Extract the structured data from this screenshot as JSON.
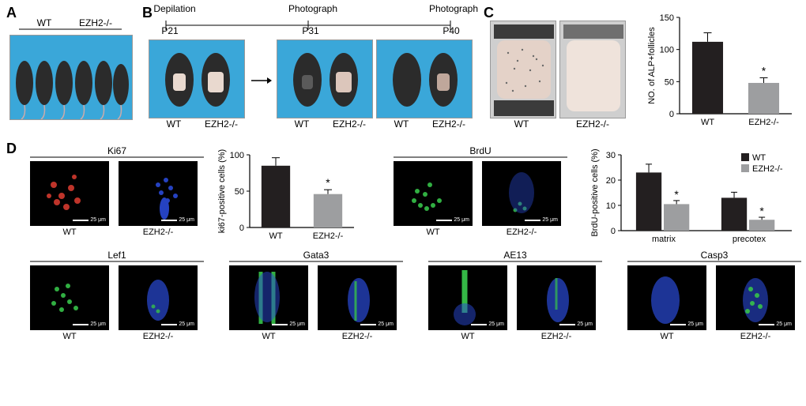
{
  "panels": {
    "A": "A",
    "B": "B",
    "C": "C",
    "D": "D"
  },
  "genotype": {
    "wt": "WT",
    "ko": "EZH2-/-"
  },
  "timeline": {
    "depilation": "Depilation",
    "photograph": "Photograph",
    "p21": "P21",
    "p31": "P31",
    "p40": "P40"
  },
  "markers": {
    "ki67": "Ki67",
    "brdu": "BrdU",
    "lef1": "Lef1",
    "gata3": "Gata3",
    "ae13": "AE13",
    "casp3": "Casp3"
  },
  "scale": "25 μm",
  "charts": {
    "alp": {
      "ylabel": "NO. of ALP+follicles",
      "ylim": [
        0,
        150
      ],
      "ytick_step": 50,
      "categories": [
        "WT",
        "EZH2-/-"
      ],
      "values": [
        112,
        48
      ],
      "errors": [
        14,
        8
      ],
      "colors": [
        "#231f20",
        "#9d9ea0"
      ],
      "sig_idx": [
        1
      ],
      "sig_mark": "*",
      "fontsize": 11
    },
    "ki67": {
      "ylabel": "ki67-positive cells (%)",
      "ylim": [
        0,
        100
      ],
      "ytick_step": 50,
      "categories": [
        "WT",
        "EZH2-/-"
      ],
      "values": [
        85,
        46
      ],
      "errors": [
        11,
        6
      ],
      "colors": [
        "#231f20",
        "#9d9ea0"
      ],
      "sig_idx": [
        1
      ],
      "sig_mark": "*",
      "fontsize": 11
    },
    "brdu": {
      "ylabel": "BrdU-positive cells (%)",
      "ylim": [
        0,
        30
      ],
      "ytick_step": 10,
      "groups": [
        "matrix",
        "precotex"
      ],
      "series": [
        {
          "name": "WT",
          "color": "#231f20",
          "values": [
            23,
            13
          ],
          "errors": [
            3.3,
            2.2
          ]
        },
        {
          "name": "EZH2-/-",
          "color": "#9d9ea0",
          "values": [
            10.5,
            4.3
          ],
          "errors": [
            1.4,
            1.0
          ]
        }
      ],
      "sig_pairs": [
        [
          0,
          1
        ],
        [
          1,
          1
        ]
      ],
      "sig_mark": "*",
      "legend_pos": "top-right",
      "fontsize": 11
    }
  },
  "photos": {
    "panelA": {
      "bg": "#3aa7d9",
      "mice_body": "#2b2b2b",
      "n": 6
    },
    "panelB": {
      "bg": "#3aa7d9",
      "mice_body": "#2b2b2b"
    },
    "panelC": {
      "bg": "#c9c9c9"
    }
  },
  "fluor": {
    "red": "#d33a2f",
    "green": "#37c24a",
    "blue": "#2a4ad6",
    "bg": "#000000"
  }
}
